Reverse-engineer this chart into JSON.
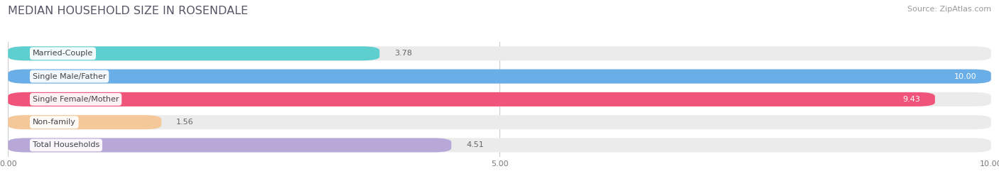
{
  "title": "MEDIAN HOUSEHOLD SIZE IN ROSENDALE",
  "source": "Source: ZipAtlas.com",
  "categories": [
    "Married-Couple",
    "Single Male/Father",
    "Single Female/Mother",
    "Non-family",
    "Total Households"
  ],
  "values": [
    3.78,
    10.0,
    9.43,
    1.56,
    4.51
  ],
  "bar_colors": [
    "#5ecfcf",
    "#6aaee8",
    "#f0547a",
    "#f5c89a",
    "#b8a8d8"
  ],
  "bar_bg_color": "#ebebeb",
  "xlim": [
    0,
    10
  ],
  "xticks": [
    0.0,
    5.0,
    10.0
  ],
  "xtick_labels": [
    "0.00",
    "5.00",
    "10.00"
  ],
  "title_fontsize": 11.5,
  "source_fontsize": 8,
  "category_fontsize": 8,
  "value_label_fontsize": 8,
  "figure_bg_color": "#ffffff",
  "bar_height": 0.62,
  "bar_gap": 0.38
}
